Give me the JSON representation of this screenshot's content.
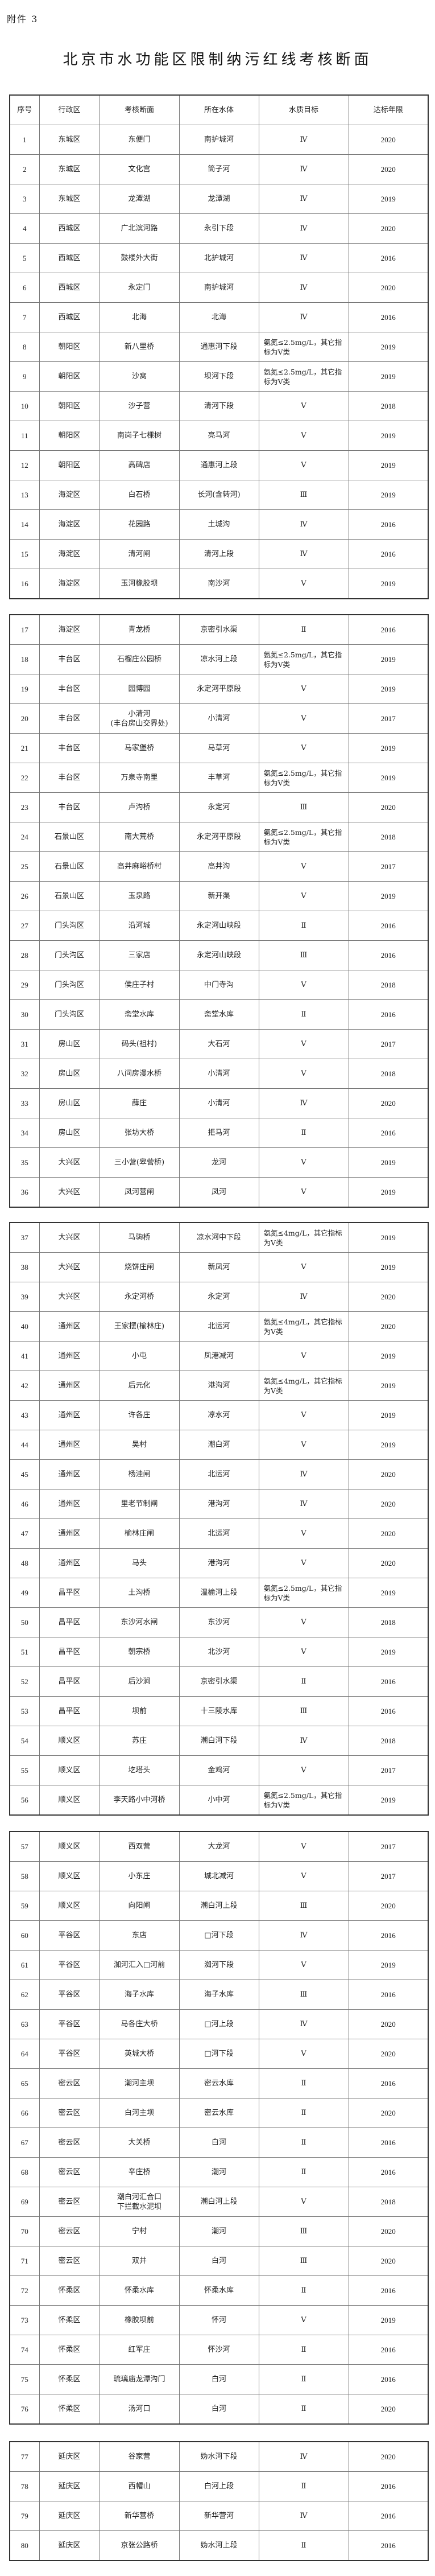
{
  "annex_label": "附件 3",
  "title": "北京市水功能区限制纳污红线考核断面",
  "table": {
    "headers": [
      "序号",
      "行政区",
      "考核断面",
      "所在水体",
      "水质目标",
      "达标年限"
    ],
    "rows": [
      [
        "1",
        "东城区",
        "东便门",
        "南护城河",
        "Ⅳ",
        "2020"
      ],
      [
        "2",
        "东城区",
        "文化宫",
        "筒子河",
        "Ⅳ",
        "2020"
      ],
      [
        "3",
        "东城区",
        "龙潭湖",
        "龙潭湖",
        "Ⅳ",
        "2019"
      ],
      [
        "4",
        "西城区",
        "广北滨河路",
        "永引下段",
        "Ⅳ",
        "2020"
      ],
      [
        "5",
        "西城区",
        "鼓楼外大街",
        "北护城河",
        "Ⅳ",
        "2016"
      ],
      [
        "6",
        "西城区",
        "永定门",
        "南护城河",
        "Ⅳ",
        "2020"
      ],
      [
        "7",
        "西城区",
        "北海",
        "北海",
        "Ⅳ",
        "2016"
      ],
      [
        "8",
        "朝阳区",
        "新八里桥",
        "通惠河下段",
        "氨氮≤2.5mg/L，其它指标为Ⅴ类",
        "2019"
      ],
      [
        "9",
        "朝阳区",
        "沙窝",
        "坝河下段",
        "氨氮≤2.5mg/L，其它指标为Ⅴ类",
        "2019"
      ],
      [
        "10",
        "朝阳区",
        "沙子营",
        "清河下段",
        "Ⅴ",
        "2018"
      ],
      [
        "11",
        "朝阳区",
        "南岗子七棵树",
        "亮马河",
        "Ⅴ",
        "2019"
      ],
      [
        "12",
        "朝阳区",
        "高碑店",
        "通惠河上段",
        "Ⅴ",
        "2019"
      ],
      [
        "13",
        "海淀区",
        "白石桥",
        "长河(含转河)",
        "Ⅲ",
        "2019"
      ],
      [
        "14",
        "海淀区",
        "花园路",
        "土城沟",
        "Ⅳ",
        "2016"
      ],
      [
        "15",
        "海淀区",
        "清河闸",
        "清河上段",
        "Ⅳ",
        "2016"
      ],
      [
        "16",
        "海淀区",
        "玉河橡胶坝",
        "南沙河",
        "Ⅴ",
        "2019"
      ],
      [
        "17",
        "海淀区",
        "青龙桥",
        "京密引水渠",
        "Ⅱ",
        "2016"
      ],
      [
        "18",
        "丰台区",
        "石榴庄公园桥",
        "凉水河上段",
        "氨氮≤2.5mg/L，其它指标为Ⅴ类",
        "2019"
      ],
      [
        "19",
        "丰台区",
        "园博园",
        "永定河平原段",
        "Ⅴ",
        "2019"
      ],
      [
        "20",
        "丰台区",
        "小清河\n(丰台房山交界处)",
        "小清河",
        "Ⅴ",
        "2017"
      ],
      [
        "21",
        "丰台区",
        "马家堡桥",
        "马草河",
        "Ⅴ",
        "2019"
      ],
      [
        "22",
        "丰台区",
        "万泉寺南里",
        "丰草河",
        "氨氮≤2.5mg/L，其它指标为Ⅴ类",
        "2019"
      ],
      [
        "23",
        "丰台区",
        "卢沟桥",
        "永定河",
        "Ⅲ",
        "2020"
      ],
      [
        "24",
        "石景山区",
        "南大荒桥",
        "永定河平原段",
        "氨氮≤2.5mg/L，其它指标为Ⅴ类",
        "2018"
      ],
      [
        "25",
        "石景山区",
        "高井麻峪桥村",
        "高井沟",
        "Ⅴ",
        "2017"
      ],
      [
        "26",
        "石景山区",
        "玉泉路",
        "新开渠",
        "Ⅴ",
        "2019"
      ],
      [
        "27",
        "门头沟区",
        "沿河城",
        "永定河山峡段",
        "Ⅱ",
        "2016"
      ],
      [
        "28",
        "门头沟区",
        "三家店",
        "永定河山峡段",
        "Ⅲ",
        "2016"
      ],
      [
        "29",
        "门头沟区",
        "侯庄子村",
        "中门寺沟",
        "Ⅴ",
        "2018"
      ],
      [
        "30",
        "门头沟区",
        "斋堂水库",
        "斋堂水库",
        "Ⅱ",
        "2016"
      ],
      [
        "31",
        "房山区",
        "码头(祖村)",
        "大石河",
        "Ⅴ",
        "2017"
      ],
      [
        "32",
        "房山区",
        "八间房漫水桥",
        "小清河",
        "Ⅴ",
        "2018"
      ],
      [
        "33",
        "房山区",
        "薛庄",
        "小清河",
        "Ⅳ",
        "2020"
      ],
      [
        "34",
        "房山区",
        "张坊大桥",
        "拒马河",
        "Ⅱ",
        "2016"
      ],
      [
        "35",
        "大兴区",
        "三小营(皋营桥)",
        "龙河",
        "Ⅴ",
        "2019"
      ],
      [
        "36",
        "大兴区",
        "凤河营闸",
        "凤河",
        "Ⅴ",
        "2019"
      ],
      [
        "37",
        "大兴区",
        "马驹桥",
        "凉水河中下段",
        "氨氮≤4mg/L，其它指标为Ⅴ类",
        "2019"
      ],
      [
        "38",
        "大兴区",
        "烧饼庄闸",
        "新凤河",
        "Ⅴ",
        "2019"
      ],
      [
        "39",
        "大兴区",
        "永定河桥",
        "永定河",
        "Ⅳ",
        "2020"
      ],
      [
        "40",
        "通州区",
        "王家摆(榆林庄)",
        "北运河",
        "氨氮≤4mg/L，其它指标为Ⅴ类",
        "2020"
      ],
      [
        "41",
        "通州区",
        "小屯",
        "凤港减河",
        "Ⅴ",
        "2019"
      ],
      [
        "42",
        "通州区",
        "后元化",
        "港沟河",
        "氨氮≤4mg/L，其它指标为Ⅴ类",
        "2019"
      ],
      [
        "43",
        "通州区",
        "许各庄",
        "凉水河",
        "Ⅴ",
        "2019"
      ],
      [
        "44",
        "通州区",
        "吴村",
        "潮白河",
        "Ⅴ",
        "2019"
      ],
      [
        "45",
        "通州区",
        "杨洼闸",
        "北运河",
        "Ⅳ",
        "2020"
      ],
      [
        "46",
        "通州区",
        "里老节制闸",
        "港沟河",
        "Ⅳ",
        "2020"
      ],
      [
        "47",
        "通州区",
        "榆林庄闸",
        "北运河",
        "Ⅴ",
        "2020"
      ],
      [
        "48",
        "通州区",
        "马头",
        "港沟河",
        "Ⅴ",
        "2020"
      ],
      [
        "49",
        "昌平区",
        "土沟桥",
        "温榆河上段",
        "氨氮≤2.5mg/L，其它指标为Ⅴ类",
        "2019"
      ],
      [
        "50",
        "昌平区",
        "东沙河水闸",
        "东沙河",
        "Ⅴ",
        "2018"
      ],
      [
        "51",
        "昌平区",
        "朝宗桥",
        "北沙河",
        "Ⅴ",
        "2019"
      ],
      [
        "52",
        "昌平区",
        "后沙涧",
        "京密引水渠",
        "Ⅱ",
        "2016"
      ],
      [
        "53",
        "昌平区",
        "坝前",
        "十三陵水库",
        "Ⅲ",
        "2016"
      ],
      [
        "54",
        "顺义区",
        "苏庄",
        "潮白河下段",
        "Ⅳ",
        "2018"
      ],
      [
        "55",
        "顺义区",
        "圪塔头",
        "金鸡河",
        "Ⅴ",
        "2017"
      ],
      [
        "56",
        "顺义区",
        "李天路小中河桥",
        "小中河",
        "氨氮≤2.5mg/L，其它指标为Ⅴ类",
        "2019"
      ],
      [
        "57",
        "顺义区",
        "西双营",
        "大龙河",
        "Ⅴ",
        "2017"
      ],
      [
        "58",
        "顺义区",
        "小东庄",
        "城北减河",
        "Ⅴ",
        "2017"
      ],
      [
        "59",
        "顺义区",
        "向阳闸",
        "潮白河上段",
        "Ⅲ",
        "2020"
      ],
      [
        "60",
        "平谷区",
        "东店",
        "□河下段",
        "Ⅳ",
        "2016"
      ],
      [
        "61",
        "平谷区",
        "洳河汇入□河前",
        "洳河下段",
        "Ⅴ",
        "2019"
      ],
      [
        "62",
        "平谷区",
        "海子水库",
        "海子水库",
        "Ⅲ",
        "2016"
      ],
      [
        "63",
        "平谷区",
        "马各庄大桥",
        "□河上段",
        "Ⅳ",
        "2020"
      ],
      [
        "64",
        "平谷区",
        "英城大桥",
        "□河下段",
        "Ⅴ",
        "2020"
      ],
      [
        "65",
        "密云区",
        "潮河主坝",
        "密云水库",
        "Ⅱ",
        "2016"
      ],
      [
        "66",
        "密云区",
        "白河主坝",
        "密云水库",
        "Ⅱ",
        "2020"
      ],
      [
        "67",
        "密云区",
        "大关桥",
        "白河",
        "Ⅱ",
        "2016"
      ],
      [
        "68",
        "密云区",
        "辛庄桥",
        "潮河",
        "Ⅱ",
        "2016"
      ],
      [
        "69",
        "密云区",
        "潮白河汇合口\n下拦截水泥坝",
        "潮白河上段",
        "Ⅴ",
        "2018"
      ],
      [
        "70",
        "密云区",
        "宁村",
        "潮河",
        "Ⅲ",
        "2020"
      ],
      [
        "71",
        "密云区",
        "双井",
        "白河",
        "Ⅲ",
        "2020"
      ],
      [
        "72",
        "怀柔区",
        "怀柔水库",
        "怀柔水库",
        "Ⅱ",
        "2016"
      ],
      [
        "73",
        "怀柔区",
        "橡胶坝前",
        "怀河",
        "Ⅴ",
        "2019"
      ],
      [
        "74",
        "怀柔区",
        "红军庄",
        "怀沙河",
        "Ⅱ",
        "2016"
      ],
      [
        "75",
        "怀柔区",
        "琉璃庙龙潭沟门",
        "白河",
        "Ⅱ",
        "2016"
      ],
      [
        "76",
        "怀柔区",
        "汤河口",
        "白河",
        "Ⅱ",
        "2020"
      ],
      [
        "77",
        "延庆区",
        "谷家营",
        "妫水河下段",
        "Ⅳ",
        "2020"
      ],
      [
        "78",
        "延庆区",
        "西帽山",
        "白河上段",
        "Ⅱ",
        "2016"
      ],
      [
        "79",
        "延庆区",
        "新华营桥",
        "新华营河",
        "Ⅳ",
        "2016"
      ],
      [
        "80",
        "延庆区",
        "京张公路桥",
        "妫水河上段",
        "Ⅱ",
        "2016"
      ]
    ]
  }
}
